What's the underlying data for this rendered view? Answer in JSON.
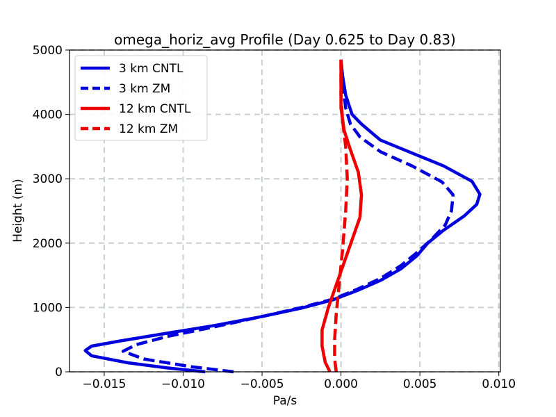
{
  "chart_data": {
    "type": "line",
    "title": "omega_horiz_avg Profile (Day 0.625 to Day 0.83)",
    "xlabel": "Pa/s",
    "ylabel": "Height (m)",
    "xlim": [
      -0.0172,
      0.0101
    ],
    "ylim": [
      0,
      5000
    ],
    "xticks": [
      -0.015,
      -0.01,
      -0.005,
      0.0,
      0.005,
      0.01
    ],
    "xtick_labels": [
      "−0.015",
      "−0.010",
      "−0.005",
      "0.000",
      "0.005",
      "0.010"
    ],
    "yticks": [
      0,
      1000,
      2000,
      3000,
      4000,
      5000
    ],
    "ytick_labels": [
      "0",
      "1000",
      "2000",
      "3000",
      "4000",
      "5000"
    ],
    "grid": true,
    "legend_position": "top-left",
    "series": [
      {
        "name": "3 km CNTL",
        "color": "#0000dd",
        "style": "solid",
        "points": [
          [
            -0.0086,
            0
          ],
          [
            -0.011,
            60
          ],
          [
            -0.0135,
            140
          ],
          [
            -0.0158,
            250
          ],
          [
            -0.0162,
            330
          ],
          [
            -0.0158,
            400
          ],
          [
            -0.014,
            480
          ],
          [
            -0.011,
            600
          ],
          [
            -0.008,
            720
          ],
          [
            -0.005,
            860
          ],
          [
            -0.0025,
            990
          ],
          [
            -0.0005,
            1120
          ],
          [
            0.0012,
            1280
          ],
          [
            0.0025,
            1420
          ],
          [
            0.0038,
            1600
          ],
          [
            0.0048,
            1800
          ],
          [
            0.0055,
            2000
          ],
          [
            0.0065,
            2200
          ],
          [
            0.0078,
            2420
          ],
          [
            0.0086,
            2600
          ],
          [
            0.0088,
            2760
          ],
          [
            0.0083,
            2960
          ],
          [
            0.0065,
            3200
          ],
          [
            0.0045,
            3400
          ],
          [
            0.0025,
            3600
          ],
          [
            0.0013,
            3850
          ],
          [
            0.0007,
            4000
          ],
          [
            0.0003,
            4300
          ],
          [
            0.0001,
            4600
          ],
          [
            0.0,
            4850
          ]
        ]
      },
      {
        "name": "3 km ZM",
        "color": "#0000dd",
        "style": "dashed",
        "points": [
          [
            -0.0068,
            0
          ],
          [
            -0.0095,
            80
          ],
          [
            -0.0125,
            200
          ],
          [
            -0.0138,
            320
          ],
          [
            -0.013,
            420
          ],
          [
            -0.011,
            550
          ],
          [
            -0.008,
            700
          ],
          [
            -0.005,
            860
          ],
          [
            -0.0025,
            1000
          ],
          [
            -0.0005,
            1130
          ],
          [
            0.001,
            1280
          ],
          [
            0.0025,
            1450
          ],
          [
            0.0038,
            1650
          ],
          [
            0.0048,
            1850
          ],
          [
            0.0057,
            2050
          ],
          [
            0.0066,
            2280
          ],
          [
            0.007,
            2500
          ],
          [
            0.0071,
            2750
          ],
          [
            0.0064,
            2950
          ],
          [
            0.0045,
            3200
          ],
          [
            0.0025,
            3420
          ],
          [
            0.0012,
            3650
          ],
          [
            0.0006,
            3850
          ],
          [
            0.0003,
            4100
          ],
          [
            0.0001,
            4500
          ],
          [
            0.0,
            4850
          ]
        ]
      },
      {
        "name": "12 km CNTL",
        "color": "#ee0000",
        "style": "solid",
        "points": [
          [
            -0.0007,
            0
          ],
          [
            -0.001,
            150
          ],
          [
            -0.0012,
            400
          ],
          [
            -0.0012,
            650
          ],
          [
            -0.0008,
            1000
          ],
          [
            -0.0003,
            1350
          ],
          [
            0.0002,
            1700
          ],
          [
            0.0007,
            2050
          ],
          [
            0.0012,
            2400
          ],
          [
            0.0013,
            2750
          ],
          [
            0.0011,
            3100
          ],
          [
            0.0006,
            3450
          ],
          [
            0.0002,
            3750
          ],
          [
            0.0,
            4100
          ],
          [
            0.0,
            4850
          ]
        ]
      },
      {
        "name": "12 km ZM",
        "color": "#ee0000",
        "style": "dashed",
        "points": [
          [
            -0.0003,
            0
          ],
          [
            -0.0004,
            200
          ],
          [
            -0.0004,
            500
          ],
          [
            -0.0003,
            900
          ],
          [
            -0.0001,
            1400
          ],
          [
            0.0001,
            1900
          ],
          [
            0.0003,
            2500
          ],
          [
            0.0004,
            3000
          ],
          [
            0.0003,
            3500
          ],
          [
            0.0001,
            3900
          ],
          [
            0.0,
            4300
          ],
          [
            0.0,
            4850
          ]
        ]
      }
    ]
  }
}
